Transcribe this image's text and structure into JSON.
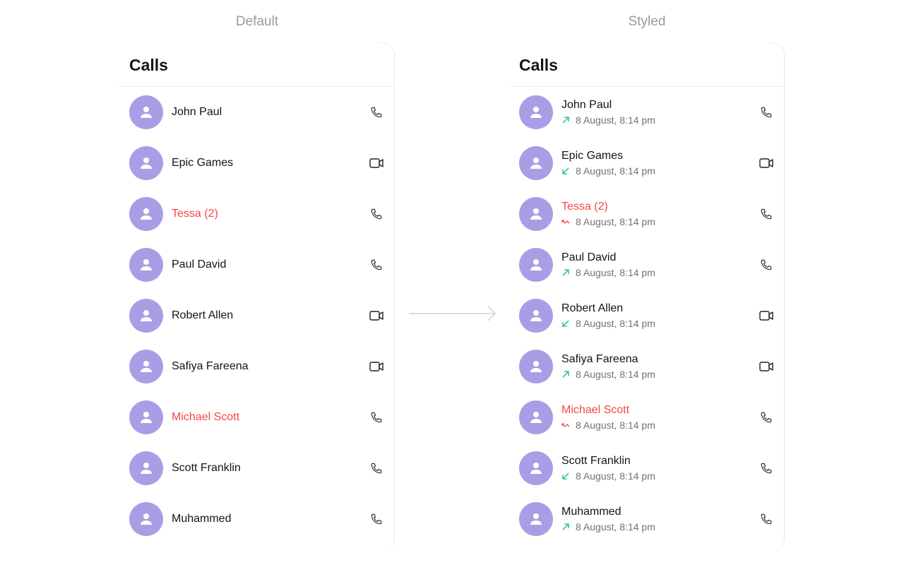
{
  "captions": {
    "default": "Default",
    "styled": "Styled"
  },
  "title": "Calls",
  "colors": {
    "avatar": "#a99ee6",
    "missed": "#f44649",
    "direction_ok": "#09c26f"
  },
  "calls": [
    {
      "name": "John Paul",
      "direction": "outgoing",
      "type": "audio",
      "time": "8 August, 8:14 pm"
    },
    {
      "name": "Epic Games",
      "direction": "incoming",
      "type": "video",
      "time": "8 August, 8:14 pm"
    },
    {
      "name": "Tessa (2)",
      "direction": "missed",
      "type": "audio",
      "time": "8 August, 8:14 pm"
    },
    {
      "name": "Paul David",
      "direction": "outgoing",
      "type": "audio",
      "time": "8 August, 8:14 pm"
    },
    {
      "name": "Robert Allen",
      "direction": "incoming",
      "type": "video",
      "time": "8 August, 8:14 pm"
    },
    {
      "name": "Safiya Fareena",
      "direction": "outgoing",
      "type": "video",
      "time": "8 August, 8:14 pm"
    },
    {
      "name": "Michael Scott",
      "direction": "missed",
      "type": "audio",
      "time": "8 August, 8:14 pm"
    },
    {
      "name": "Scott Franklin",
      "direction": "incoming",
      "type": "audio",
      "time": "8 August, 8:14 pm"
    },
    {
      "name": "Muhammed",
      "direction": "outgoing",
      "type": "audio",
      "time": "8 August, 8:14 pm"
    }
  ]
}
